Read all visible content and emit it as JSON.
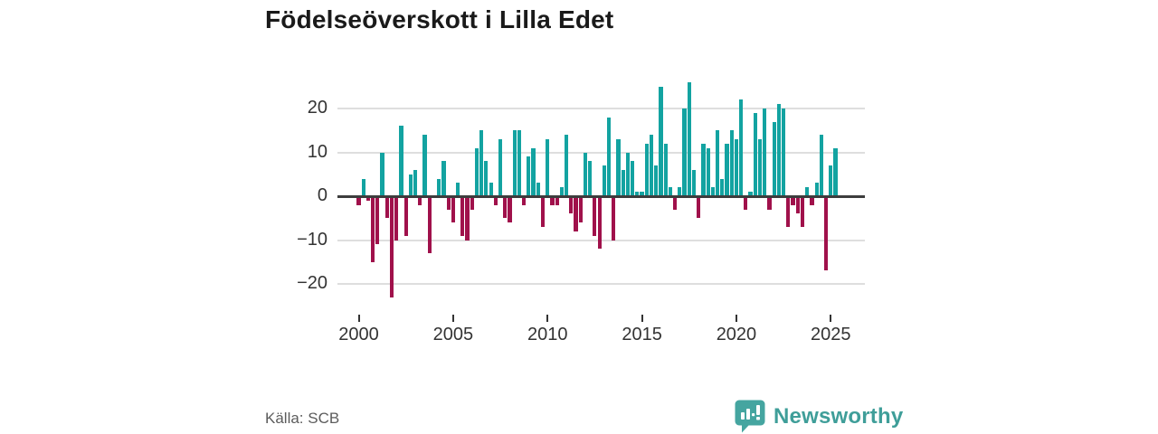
{
  "title": "Födelseöverskott i Lilla Edet",
  "source": "Källa: SCB",
  "brand": {
    "name": "Newsworthy",
    "icon": "newsworthy-speech-bubble-bar-chart-icon"
  },
  "colors": {
    "positive_bar": "#13a3a1",
    "negative_bar": "#a0114b",
    "brand_teal": "#3f9e99",
    "logo_bubble": "#45a5a0",
    "grid": "#dedede",
    "zero_line": "#3d3d3d",
    "axis_text": "#333333",
    "source_text": "#5c5c5c",
    "title_text": "#1a1a1a"
  },
  "chart_data": {
    "type": "bar",
    "title": "Födelseöverskott i Lilla Edet",
    "xlabel": "",
    "ylabel": "",
    "frequency": "quarterly",
    "x_start": "2000-Q1",
    "x_end": "2025-Q2",
    "xticks": [
      2000,
      2005,
      2010,
      2015,
      2020,
      2025
    ],
    "yticks": [
      20,
      10,
      0,
      -10,
      -20
    ],
    "ylim": [
      -25,
      28
    ],
    "grid": true,
    "legend": "none",
    "series": [
      {
        "name": "Födelseöverskott",
        "values": [
          -2,
          4,
          -1,
          -15,
          -11,
          10,
          -5,
          -23,
          -10,
          16,
          -9,
          5,
          6,
          -2,
          14,
          -13,
          0,
          4,
          8,
          -3,
          -6,
          3,
          -9,
          -10,
          -3,
          11,
          15,
          8,
          3,
          -2,
          13,
          -5,
          -6,
          15,
          15,
          -2,
          9,
          11,
          3,
          -7,
          13,
          -2,
          -2,
          2,
          14,
          -4,
          -8,
          -6,
          10,
          8,
          -9,
          -12,
          7,
          18,
          -10,
          13,
          6,
          10,
          8,
          1,
          1,
          12,
          14,
          7,
          25,
          12,
          2,
          -3,
          2,
          20,
          26,
          6,
          -5,
          12,
          11,
          2,
          15,
          4,
          12,
          15,
          13,
          22,
          -3,
          1,
          19,
          13,
          20,
          -3,
          17,
          21,
          20,
          -7,
          -2,
          -4,
          -7,
          2,
          -2,
          3,
          14,
          -17,
          7,
          11
        ]
      }
    ]
  }
}
